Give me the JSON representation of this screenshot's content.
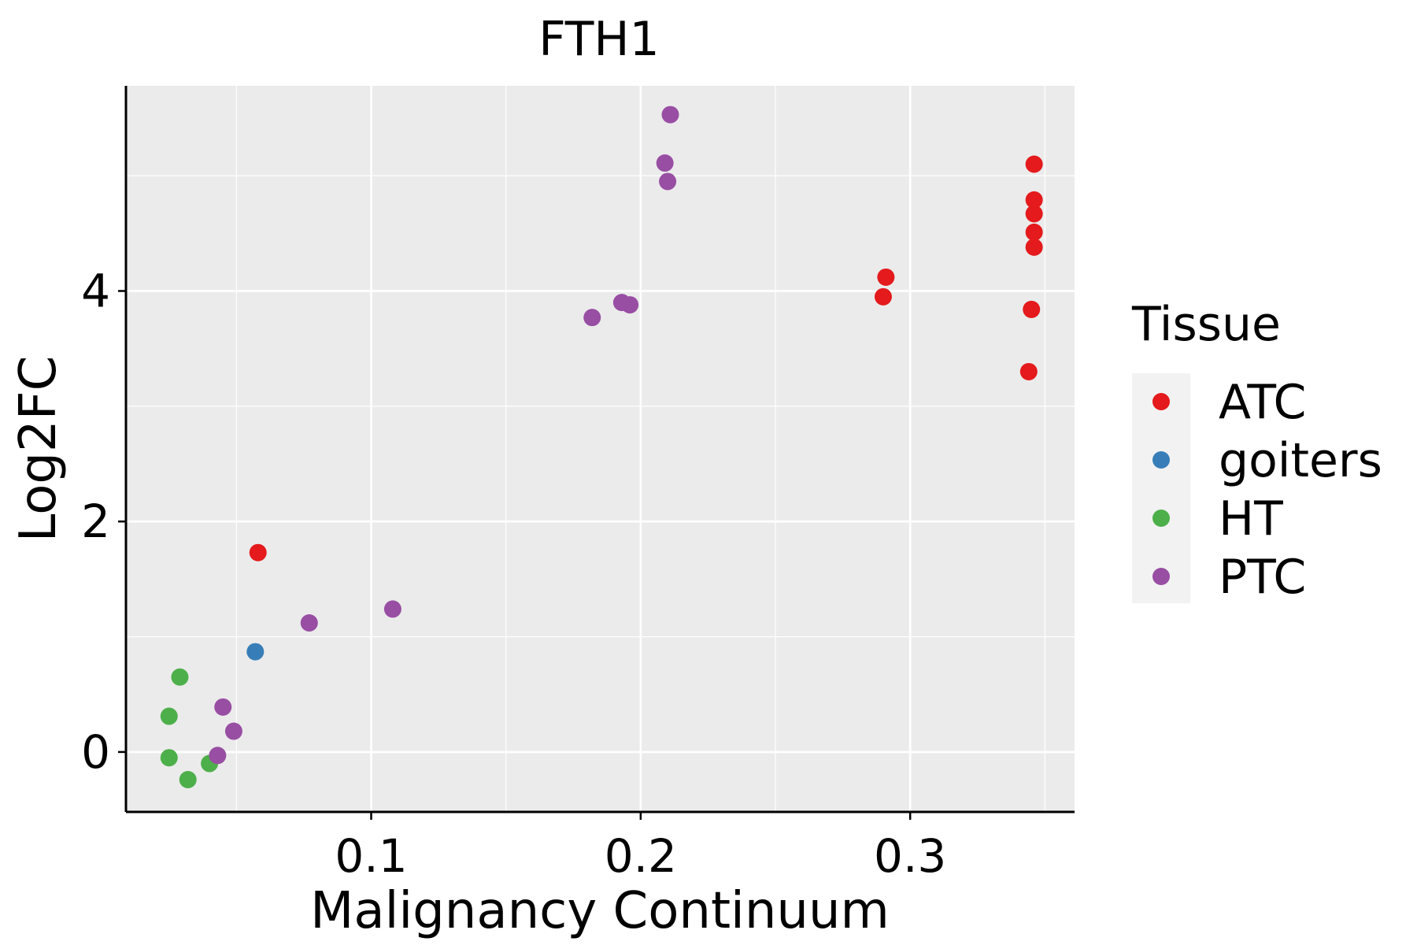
{
  "chart_data": {
    "type": "scatter",
    "title": "FTH1",
    "xlabel": "Malignancy Continuum",
    "ylabel": "Log2FC",
    "xlim": [
      0.009,
      0.361
    ],
    "ylim": [
      -0.52,
      5.78
    ],
    "x_ticks": [
      0.1,
      0.2,
      0.3
    ],
    "x_tick_labels": [
      "0.1",
      "0.2",
      "0.3"
    ],
    "x_minor_ticks": [
      0.05,
      0.15,
      0.25,
      0.35
    ],
    "y_ticks": [
      0,
      2,
      4
    ],
    "y_tick_labels": [
      "0",
      "2",
      "4"
    ],
    "y_minor_ticks": [
      1,
      3,
      5
    ],
    "grid": true,
    "panel_background": "#EBEBEB",
    "legend": {
      "title": "Tissue",
      "position": "right",
      "entries": [
        {
          "name": "ATC",
          "color": "#E41A1C"
        },
        {
          "name": "goiters",
          "color": "#377EB8"
        },
        {
          "name": "HT",
          "color": "#4DAF4A"
        },
        {
          "name": "PTC",
          "color": "#984EA3"
        }
      ]
    },
    "series": [
      {
        "name": "ATC",
        "color": "#E41A1C",
        "points": [
          {
            "x": 0.058,
            "y": 1.73
          },
          {
            "x": 0.291,
            "y": 4.12
          },
          {
            "x": 0.29,
            "y": 3.95
          },
          {
            "x": 0.346,
            "y": 5.1
          },
          {
            "x": 0.346,
            "y": 4.79
          },
          {
            "x": 0.346,
            "y": 4.67
          },
          {
            "x": 0.346,
            "y": 4.51
          },
          {
            "x": 0.346,
            "y": 4.38
          },
          {
            "x": 0.345,
            "y": 3.84
          },
          {
            "x": 0.344,
            "y": 3.3
          }
        ]
      },
      {
        "name": "goiters",
        "color": "#377EB8",
        "points": [
          {
            "x": 0.057,
            "y": 0.87
          }
        ]
      },
      {
        "name": "HT",
        "color": "#4DAF4A",
        "points": [
          {
            "x": 0.029,
            "y": 0.65
          },
          {
            "x": 0.025,
            "y": 0.31
          },
          {
            "x": 0.025,
            "y": -0.05
          },
          {
            "x": 0.032,
            "y": -0.24
          },
          {
            "x": 0.04,
            "y": -0.1
          }
        ]
      },
      {
        "name": "PTC",
        "color": "#984EA3",
        "points": [
          {
            "x": 0.045,
            "y": 0.39
          },
          {
            "x": 0.049,
            "y": 0.18
          },
          {
            "x": 0.043,
            "y": -0.03
          },
          {
            "x": 0.077,
            "y": 1.12
          },
          {
            "x": 0.108,
            "y": 1.24
          },
          {
            "x": 0.182,
            "y": 3.77
          },
          {
            "x": 0.193,
            "y": 3.9
          },
          {
            "x": 0.196,
            "y": 3.88
          },
          {
            "x": 0.211,
            "y": 5.53
          },
          {
            "x": 0.209,
            "y": 5.11
          },
          {
            "x": 0.21,
            "y": 4.95
          }
        ]
      }
    ]
  }
}
